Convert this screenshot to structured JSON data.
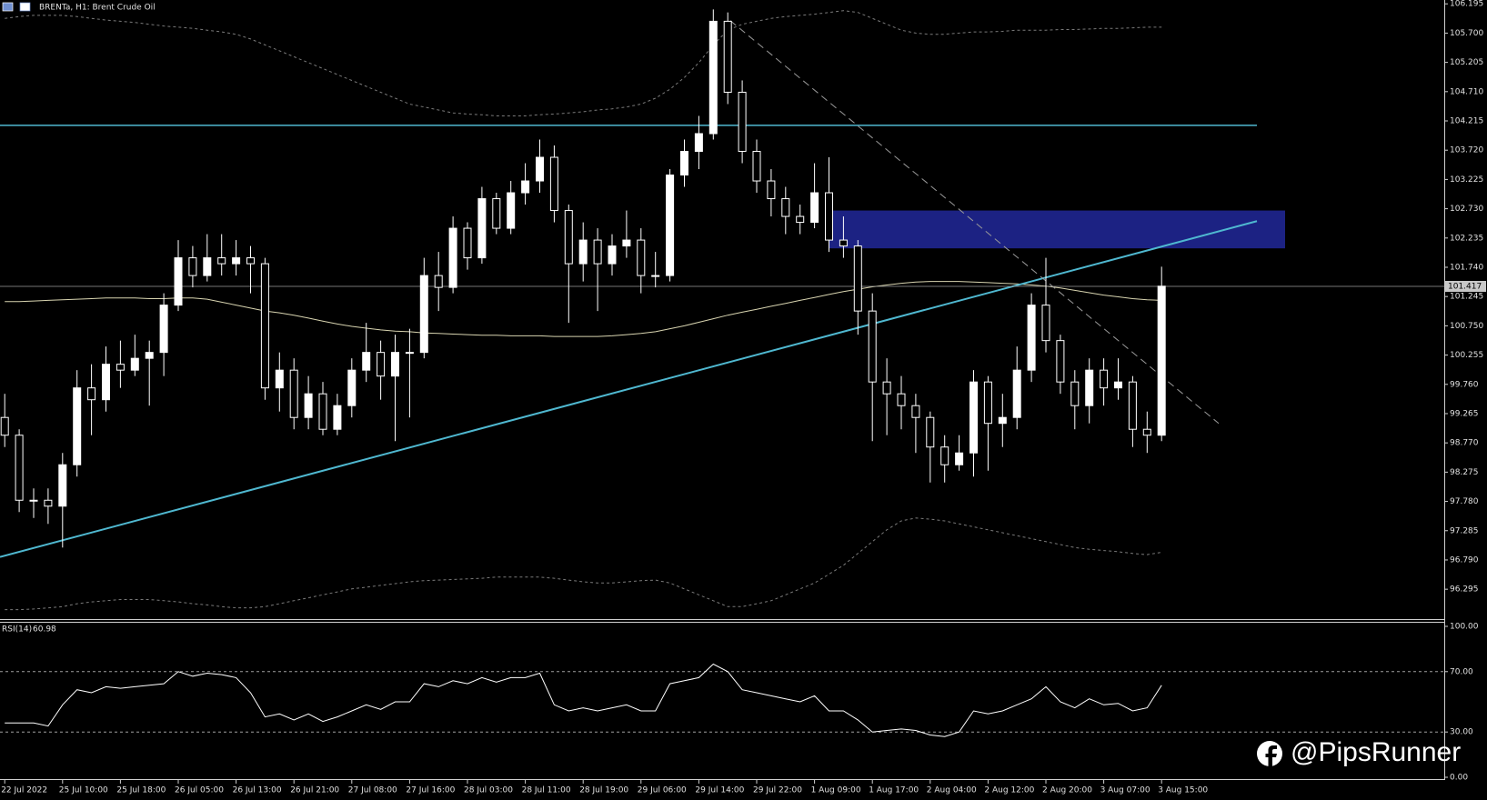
{
  "chart_data": [
    {
      "type": "candlestick",
      "title": "BRENTa, H1:  Brent Crude Oil",
      "categories": [
        "22 Jul 2022",
        null,
        null,
        null,
        "25 Jul 10:00",
        null,
        null,
        null,
        "25 Jul 18:00",
        null,
        null,
        null,
        "26 Jul 05:00",
        null,
        null,
        null,
        "26 Jul 13:00",
        null,
        null,
        null,
        "26 Jul 21:00",
        null,
        null,
        null,
        "27 Jul 08:00",
        null,
        null,
        null,
        "27 Jul 16:00",
        null,
        null,
        null,
        "28 Jul 03:00",
        null,
        null,
        null,
        "28 Jul 11:00",
        null,
        null,
        null,
        "28 Jul 19:00",
        null,
        null,
        null,
        "29 Jul 06:00",
        null,
        null,
        null,
        "29 Jul 14:00",
        null,
        null,
        null,
        "29 Jul 22:00",
        null,
        null,
        null,
        "1 Aug 09:00",
        null,
        null,
        null,
        "1 Aug 17:00",
        null,
        null,
        null,
        "2 Aug 04:00",
        null,
        null,
        null,
        "2 Aug 12:00",
        null,
        null,
        null,
        "2 Aug 20:00",
        null,
        null,
        null,
        "3 Aug 07:00",
        null,
        null,
        null,
        "3 Aug 15:00"
      ],
      "open": [
        99.2,
        98.9,
        97.8,
        97.8,
        97.7,
        98.4,
        99.7,
        99.5,
        100.1,
        100.0,
        100.2,
        100.3,
        101.1,
        101.9,
        101.6,
        101.9,
        101.8,
        101.9,
        101.8,
        99.7,
        100.0,
        99.2,
        99.6,
        99.0,
        99.4,
        100.0,
        100.3,
        99.9,
        100.3,
        100.3,
        101.6,
        101.4,
        102.4,
        101.9,
        102.9,
        102.4,
        103.0,
        103.2,
        103.6,
        102.7,
        101.8,
        102.2,
        101.8,
        102.1,
        102.2,
        101.6,
        101.6,
        103.3,
        103.7,
        104.0,
        105.9,
        104.7,
        103.7,
        103.2,
        102.9,
        102.6,
        102.5,
        103.0,
        102.2,
        102.1,
        101.0,
        99.8,
        99.6,
        99.4,
        99.2,
        98.7,
        98.4,
        98.6,
        99.8,
        99.1,
        99.2,
        100.0,
        101.1,
        100.5,
        99.8,
        99.4,
        100.0,
        99.7,
        99.8,
        99.0,
        98.9
      ],
      "high": [
        99.6,
        99.0,
        98.0,
        98.0,
        98.6,
        100.0,
        100.1,
        100.4,
        100.5,
        100.6,
        100.5,
        101.3,
        102.2,
        102.1,
        102.3,
        102.3,
        102.2,
        102.1,
        101.9,
        100.3,
        100.2,
        99.9,
        99.8,
        99.6,
        100.2,
        100.8,
        100.5,
        100.6,
        100.7,
        101.9,
        102.0,
        102.6,
        102.5,
        103.1,
        103.0,
        103.2,
        103.5,
        103.9,
        103.8,
        102.8,
        102.5,
        102.4,
        102.3,
        102.7,
        102.4,
        102.0,
        103.4,
        103.9,
        104.3,
        106.1,
        106.05,
        104.9,
        103.9,
        103.4,
        103.1,
        102.8,
        103.5,
        103.6,
        102.6,
        102.2,
        101.3,
        100.2,
        99.9,
        99.6,
        99.3,
        98.9,
        98.9,
        100.0,
        99.9,
        99.6,
        100.4,
        101.3,
        101.9,
        100.6,
        100.0,
        100.2,
        100.2,
        100.2,
        99.9,
        99.3,
        101.75
      ],
      "low": [
        98.7,
        97.6,
        97.5,
        97.4,
        97.0,
        98.2,
        98.9,
        99.3,
        99.7,
        99.9,
        99.4,
        99.9,
        101.0,
        101.4,
        101.5,
        101.6,
        101.6,
        101.3,
        99.5,
        99.3,
        99.0,
        99.0,
        98.9,
        98.9,
        99.2,
        99.8,
        99.5,
        98.8,
        99.2,
        100.2,
        101.0,
        101.3,
        101.7,
        101.8,
        102.3,
        102.3,
        102.8,
        103.0,
        102.5,
        100.8,
        101.5,
        101.0,
        101.6,
        101.9,
        101.3,
        101.4,
        101.5,
        103.1,
        103.4,
        103.9,
        104.5,
        103.5,
        103.0,
        102.6,
        102.3,
        102.3,
        102.4,
        102.0,
        101.9,
        100.6,
        98.8,
        98.9,
        99.0,
        98.6,
        98.1,
        98.1,
        98.3,
        98.2,
        98.3,
        98.7,
        99.0,
        99.8,
        100.3,
        99.6,
        99.0,
        99.1,
        99.4,
        99.5,
        98.7,
        98.6,
        98.8
      ],
      "close": [
        98.9,
        97.8,
        97.8,
        97.7,
        98.4,
        99.7,
        99.5,
        100.1,
        100.0,
        100.2,
        100.3,
        101.1,
        101.9,
        101.6,
        101.9,
        101.8,
        101.9,
        101.8,
        99.7,
        100.0,
        99.2,
        99.6,
        99.0,
        99.4,
        100.0,
        100.3,
        99.9,
        100.3,
        100.3,
        101.6,
        101.4,
        102.4,
        101.9,
        102.9,
        102.4,
        103.0,
        103.2,
        103.6,
        102.7,
        101.8,
        102.2,
        101.8,
        102.1,
        102.2,
        101.6,
        101.6,
        103.3,
        103.7,
        104.0,
        105.9,
        104.7,
        103.7,
        103.2,
        102.9,
        102.6,
        102.5,
        103.0,
        102.2,
        102.1,
        101.0,
        99.8,
        99.6,
        99.4,
        99.2,
        98.7,
        98.4,
        98.6,
        99.8,
        99.1,
        99.2,
        100.0,
        101.1,
        100.5,
        99.8,
        99.4,
        100.0,
        99.7,
        99.8,
        99.0,
        98.9,
        101.42
      ],
      "color_up": "#ffffff",
      "color_down": "#000000",
      "wick_color": "#ffffff",
      "overlays": [
        {
          "color": "#7a7a7a",
          "dashed": true,
          "values": [
            105.95,
            105.98,
            106.0,
            106.0,
            106.0,
            105.98,
            105.95,
            105.92,
            105.9,
            105.88,
            105.85,
            105.82,
            105.8,
            105.78,
            105.75,
            105.72,
            105.68,
            105.6,
            105.5,
            105.4,
            105.3,
            105.2,
            105.1,
            105.0,
            104.9,
            104.8,
            104.7,
            104.6,
            104.5,
            104.45,
            104.4,
            104.35,
            104.33,
            104.32,
            104.3,
            104.3,
            104.3,
            104.32,
            104.33,
            104.35,
            104.37,
            104.4,
            104.42,
            104.45,
            104.5,
            104.6,
            104.75,
            104.95,
            105.2,
            105.5,
            105.75,
            105.85,
            105.9,
            105.95,
            105.98,
            106.0,
            106.02,
            106.05,
            106.08,
            106.05,
            105.95,
            105.85,
            105.75,
            105.7,
            105.68,
            105.68,
            105.7,
            105.72,
            105.72,
            105.73,
            105.75,
            105.75,
            105.75,
            105.76,
            105.76,
            105.77,
            105.78,
            105.78,
            105.79,
            105.8,
            105.8
          ]
        },
        {
          "color": "#d8d4b0",
          "dashed": false,
          "values": [
            101.16,
            101.16,
            101.17,
            101.18,
            101.19,
            101.2,
            101.21,
            101.22,
            101.22,
            101.22,
            101.21,
            101.21,
            101.22,
            101.22,
            101.2,
            101.15,
            101.1,
            101.05,
            101.0,
            100.97,
            100.93,
            100.88,
            100.83,
            100.78,
            100.74,
            100.71,
            100.68,
            100.66,
            100.65,
            100.63,
            100.62,
            100.61,
            100.6,
            100.59,
            100.59,
            100.58,
            100.58,
            100.58,
            100.57,
            100.57,
            100.57,
            100.57,
            100.58,
            100.6,
            100.62,
            100.65,
            100.7,
            100.75,
            100.81,
            100.87,
            100.93,
            100.98,
            101.03,
            101.08,
            101.13,
            101.18,
            101.23,
            101.28,
            101.33,
            101.37,
            101.41,
            101.44,
            101.47,
            101.49,
            101.5,
            101.5,
            101.5,
            101.49,
            101.48,
            101.47,
            101.46,
            101.44,
            101.42,
            101.39,
            101.35,
            101.31,
            101.27,
            101.24,
            101.21,
            101.19,
            101.18
          ]
        },
        {
          "color": "#7a7a7a",
          "dashed": true,
          "values": [
            95.95,
            95.95,
            95.96,
            95.98,
            96.0,
            96.05,
            96.08,
            96.1,
            96.12,
            96.12,
            96.12,
            96.1,
            96.08,
            96.05,
            96.03,
            96.0,
            95.98,
            95.98,
            96.0,
            96.05,
            96.1,
            96.15,
            96.2,
            96.25,
            96.3,
            96.33,
            96.36,
            96.39,
            96.42,
            96.44,
            96.45,
            96.46,
            96.47,
            96.48,
            96.5,
            96.5,
            96.5,
            96.5,
            96.48,
            96.45,
            96.42,
            96.4,
            96.4,
            96.42,
            96.44,
            96.45,
            96.4,
            96.3,
            96.2,
            96.1,
            96.0,
            96.0,
            96.05,
            96.1,
            96.2,
            96.3,
            96.4,
            96.55,
            96.7,
            96.9,
            97.1,
            97.3,
            97.45,
            97.5,
            97.48,
            97.45,
            97.4,
            97.35,
            97.3,
            97.25,
            97.2,
            97.15,
            97.1,
            97.05,
            97.0,
            96.97,
            96.95,
            96.93,
            96.9,
            96.88,
            96.92
          ]
        }
      ],
      "horizontal_lines": [
        {
          "value": 104.14,
          "color": "#4fb8d0"
        }
      ],
      "zone": {
        "values": [
          102.06,
          102.7
        ],
        "color": "#1c2283"
      },
      "trendlines": [
        {
          "values": [
            96.84,
            102.52
          ],
          "color": "#4fb8d0",
          "dashed": false
        },
        {
          "values": [
            105.91,
            99.1
          ],
          "color": "#9a9a9a",
          "dashed": true
        }
      ],
      "current_price": 101.417,
      "ylim": [
        95.79,
        106.26
      ],
      "yticks": [
        106.195,
        {
          "value": 105.7,
          "label": "105.700"
        },
        105.205,
        {
          "value": 104.71,
          "label": "104.710"
        },
        104.215,
        {
          "value": 103.72,
          "label": "103.720"
        },
        103.225,
        {
          "value": 102.73,
          "label": "102.730"
        },
        102.235,
        {
          "value": 101.74,
          "label": "101.740"
        },
        101.245,
        {
          "value": 100.75,
          "label": "100.750"
        },
        100.255,
        {
          "value": 99.76,
          "label": "99.760"
        },
        99.265,
        {
          "value": 98.77,
          "label": "98.770"
        },
        98.275,
        {
          "value": 97.78,
          "label": "97.780"
        },
        97.285,
        {
          "value": 96.79,
          "label": "96.790"
        },
        96.295
      ],
      "grid": false
    },
    {
      "type": "line",
      "series": [
        {
          "name": "RSI(14)",
          "color": "#ffffff",
          "values": [
            36,
            36,
            36,
            34,
            48,
            58,
            56,
            60,
            59,
            60,
            61,
            62,
            70,
            67,
            69,
            68,
            66,
            56,
            40,
            42,
            38,
            42,
            37,
            40,
            44,
            48,
            45,
            50,
            50,
            62,
            60,
            64,
            62,
            66,
            63,
            66,
            66,
            69,
            48,
            44,
            46,
            44,
            46,
            48,
            44,
            44,
            62,
            64,
            66,
            75,
            70,
            58,
            56,
            54,
            52,
            50,
            54,
            44,
            44,
            38,
            30,
            31,
            32,
            31,
            28,
            27,
            30,
            44,
            42,
            44,
            48,
            52,
            60,
            50,
            46,
            52,
            48,
            49,
            44,
            46,
            60.98
          ]
        }
      ],
      "ylim": [
        -1.2,
        102.4
      ],
      "yticks": [
        {
          "value": 100,
          "label": "100.00"
        },
        {
          "value": 70,
          "label": "70.00"
        },
        {
          "value": 30,
          "label": "30.00"
        },
        {
          "value": 0,
          "label": "0.00"
        }
      ],
      "levels": [
        70,
        30
      ]
    }
  ],
  "watermark": "@PipsRunner"
}
